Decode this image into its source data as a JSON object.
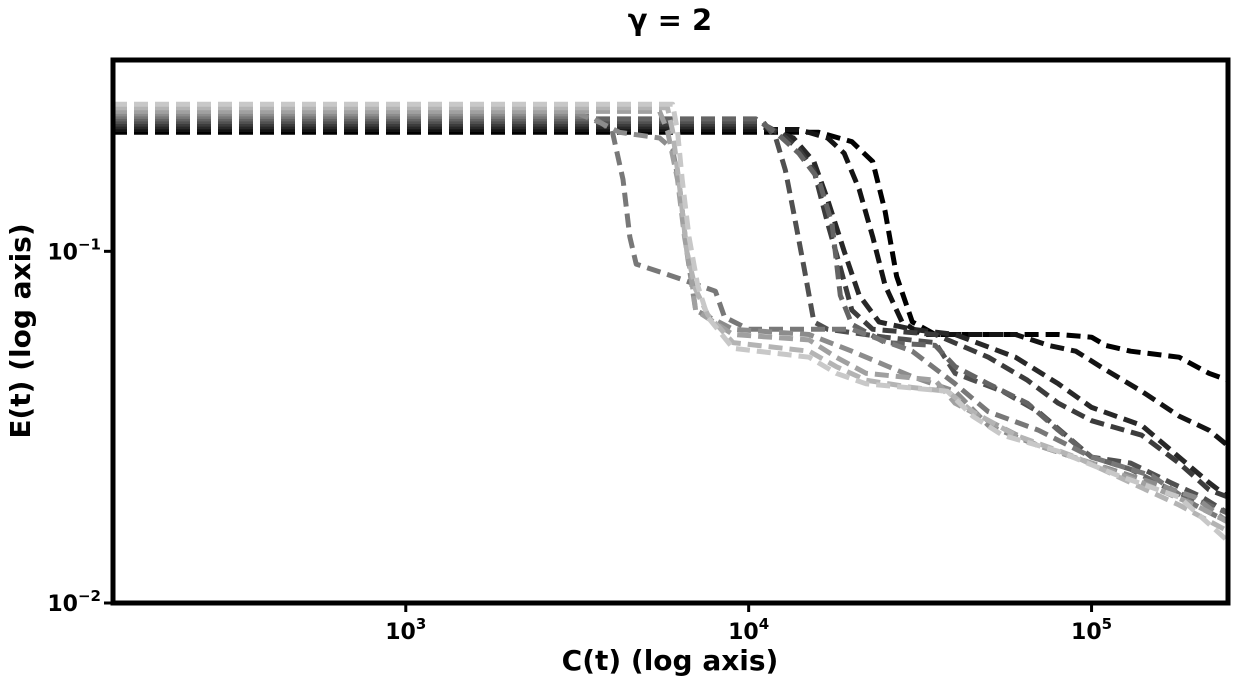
{
  "chart_data": {
    "type": "line",
    "title": "γ = 2",
    "xlabel": "C(t) (log axis)",
    "ylabel": "E(t) (log axis)",
    "xscale": "log",
    "yscale": "log",
    "xlim": [
      140,
      250000
    ],
    "ylim": [
      0.01,
      0.35
    ],
    "grid": false,
    "line_style": "dashed",
    "x_ticks": [
      {
        "value": 1000,
        "base": "10",
        "exp": "3"
      },
      {
        "value": 10000,
        "base": "10",
        "exp": "4"
      },
      {
        "value": 100000,
        "base": "10",
        "exp": "5"
      }
    ],
    "y_ticks": [
      {
        "value": 0.1,
        "base": "10",
        "exp": "−1"
      },
      {
        "value": 0.01,
        "base": "10",
        "exp": "−2"
      }
    ],
    "series": [
      {
        "color": "#000000",
        "points": [
          [
            140,
            0.218
          ],
          [
            16000,
            0.218
          ],
          [
            20000,
            0.205
          ],
          [
            23000,
            0.18
          ],
          [
            25000,
            0.13
          ],
          [
            27000,
            0.085
          ],
          [
            30000,
            0.063
          ],
          [
            35000,
            0.058
          ],
          [
            50000,
            0.058
          ],
          [
            80000,
            0.058
          ],
          [
            100000,
            0.057
          ],
          [
            110000,
            0.054
          ],
          [
            130000,
            0.052
          ],
          [
            180000,
            0.05
          ],
          [
            220000,
            0.045
          ],
          [
            250000,
            0.043
          ]
        ]
      },
      {
        "color": "#141414",
        "points": [
          [
            140,
            0.222
          ],
          [
            14000,
            0.222
          ],
          [
            17000,
            0.21
          ],
          [
            19000,
            0.19
          ],
          [
            21000,
            0.15
          ],
          [
            23000,
            0.11
          ],
          [
            25000,
            0.08
          ],
          [
            28000,
            0.063
          ],
          [
            32000,
            0.058
          ],
          [
            60000,
            0.058
          ],
          [
            75000,
            0.054
          ],
          [
            90000,
            0.052
          ],
          [
            110000,
            0.046
          ],
          [
            140000,
            0.04
          ],
          [
            180000,
            0.034
          ],
          [
            220000,
            0.031
          ],
          [
            250000,
            0.028
          ]
        ]
      },
      {
        "color": "#282828",
        "points": [
          [
            140,
            0.226
          ],
          [
            11000,
            0.226
          ],
          [
            13500,
            0.21
          ],
          [
            15500,
            0.18
          ],
          [
            17000,
            0.14
          ],
          [
            19000,
            0.1
          ],
          [
            21000,
            0.075
          ],
          [
            24000,
            0.063
          ],
          [
            30000,
            0.06
          ],
          [
            40000,
            0.058
          ],
          [
            60000,
            0.05
          ],
          [
            80000,
            0.042
          ],
          [
            100000,
            0.036
          ],
          [
            140000,
            0.032
          ],
          [
            180000,
            0.026
          ],
          [
            220000,
            0.022
          ],
          [
            250000,
            0.02
          ]
        ]
      },
      {
        "color": "#3c3c3c",
        "points": [
          [
            140,
            0.23
          ],
          [
            11000,
            0.23
          ],
          [
            12500,
            0.215
          ],
          [
            14000,
            0.195
          ],
          [
            15500,
            0.17
          ],
          [
            17000,
            0.12
          ],
          [
            18500,
            0.09
          ],
          [
            20000,
            0.068
          ],
          [
            23000,
            0.06
          ],
          [
            35000,
            0.058
          ],
          [
            50000,
            0.05
          ],
          [
            65000,
            0.043
          ],
          [
            80000,
            0.037
          ],
          [
            100000,
            0.033
          ],
          [
            140000,
            0.03
          ],
          [
            180000,
            0.025
          ],
          [
            220000,
            0.021
          ],
          [
            250000,
            0.02
          ]
        ]
      },
      {
        "color": "#505050",
        "points": [
          [
            140,
            0.234
          ],
          [
            11000,
            0.234
          ],
          [
            12000,
            0.21
          ],
          [
            12800,
            0.17
          ],
          [
            13500,
            0.13
          ],
          [
            14500,
            0.09
          ],
          [
            15500,
            0.063
          ],
          [
            17000,
            0.06
          ],
          [
            25000,
            0.057
          ],
          [
            35000,
            0.055
          ],
          [
            40000,
            0.045
          ],
          [
            55000,
            0.04
          ],
          [
            70000,
            0.035
          ],
          [
            100000,
            0.026
          ],
          [
            130000,
            0.025
          ],
          [
            170000,
            0.022
          ],
          [
            210000,
            0.02
          ],
          [
            250000,
            0.018
          ]
        ]
      },
      {
        "color": "#646464",
        "points": [
          [
            140,
            0.238
          ],
          [
            10500,
            0.238
          ],
          [
            12000,
            0.218
          ],
          [
            14000,
            0.19
          ],
          [
            16000,
            0.16
          ],
          [
            17500,
            0.12
          ],
          [
            18500,
            0.075
          ],
          [
            20000,
            0.062
          ],
          [
            25000,
            0.055
          ],
          [
            35000,
            0.054
          ],
          [
            40000,
            0.047
          ],
          [
            50000,
            0.042
          ],
          [
            65000,
            0.037
          ],
          [
            80000,
            0.031
          ],
          [
            100000,
            0.026
          ],
          [
            130000,
            0.024
          ],
          [
            170000,
            0.021
          ],
          [
            220000,
            0.019
          ],
          [
            250000,
            0.018
          ]
        ]
      },
      {
        "color": "#787878",
        "points": [
          [
            140,
            0.242
          ],
          [
            3500,
            0.242
          ],
          [
            4000,
            0.22
          ],
          [
            4300,
            0.16
          ],
          [
            4500,
            0.11
          ],
          [
            4700,
            0.092
          ],
          [
            6000,
            0.085
          ],
          [
            8000,
            0.077
          ],
          [
            8500,
            0.065
          ],
          [
            10000,
            0.06
          ],
          [
            20000,
            0.06
          ],
          [
            30000,
            0.052
          ],
          [
            40000,
            0.042
          ],
          [
            50000,
            0.035
          ],
          [
            70000,
            0.031
          ],
          [
            100000,
            0.026
          ],
          [
            150000,
            0.023
          ],
          [
            200000,
            0.019
          ],
          [
            250000,
            0.017
          ]
        ]
      },
      {
        "color": "#8c8c8c",
        "points": [
          [
            140,
            0.246
          ],
          [
            3200,
            0.246
          ],
          [
            3700,
            0.232
          ],
          [
            4200,
            0.218
          ],
          [
            5500,
            0.21
          ],
          [
            6000,
            0.195
          ],
          [
            6300,
            0.15
          ],
          [
            6600,
            0.1
          ],
          [
            7000,
            0.068
          ],
          [
            9000,
            0.06
          ],
          [
            15000,
            0.058
          ],
          [
            20000,
            0.052
          ],
          [
            30000,
            0.044
          ],
          [
            40000,
            0.04
          ],
          [
            50000,
            0.032
          ],
          [
            70000,
            0.028
          ],
          [
            100000,
            0.025
          ],
          [
            150000,
            0.022
          ],
          [
            200000,
            0.02
          ],
          [
            250000,
            0.017
          ]
        ]
      },
      {
        "color": "#a0a0a0",
        "points": [
          [
            140,
            0.25
          ],
          [
            5500,
            0.25
          ],
          [
            5800,
            0.22
          ],
          [
            6200,
            0.16
          ],
          [
            6500,
            0.11
          ],
          [
            6800,
            0.085
          ],
          [
            7000,
            0.068
          ],
          [
            9000,
            0.058
          ],
          [
            15000,
            0.056
          ],
          [
            18000,
            0.05
          ],
          [
            22000,
            0.045
          ],
          [
            35000,
            0.043
          ],
          [
            40000,
            0.037
          ],
          [
            50000,
            0.033
          ],
          [
            70000,
            0.028
          ],
          [
            100000,
            0.025
          ],
          [
            140000,
            0.022
          ],
          [
            200000,
            0.019
          ],
          [
            250000,
            0.017
          ]
        ]
      },
      {
        "color": "#b4b4b4",
        "points": [
          [
            140,
            0.256
          ],
          [
            5800,
            0.256
          ],
          [
            6000,
            0.22
          ],
          [
            6300,
            0.15
          ],
          [
            6600,
            0.1
          ],
          [
            7000,
            0.078
          ],
          [
            7600,
            0.066
          ],
          [
            9000,
            0.055
          ],
          [
            15000,
            0.052
          ],
          [
            18000,
            0.047
          ],
          [
            22000,
            0.043
          ],
          [
            30000,
            0.041
          ],
          [
            38000,
            0.04
          ],
          [
            45000,
            0.035
          ],
          [
            60000,
            0.03
          ],
          [
            90000,
            0.026
          ],
          [
            130000,
            0.022
          ],
          [
            180000,
            0.019
          ],
          [
            250000,
            0.016
          ]
        ]
      },
      {
        "color": "#c8c8c8",
        "points": [
          [
            140,
            0.262
          ],
          [
            6000,
            0.262
          ],
          [
            6200,
            0.22
          ],
          [
            6400,
            0.16
          ],
          [
            6700,
            0.11
          ],
          [
            7100,
            0.08
          ],
          [
            7600,
            0.065
          ],
          [
            9000,
            0.053
          ],
          [
            15000,
            0.05
          ],
          [
            18000,
            0.045
          ],
          [
            22000,
            0.042
          ],
          [
            38000,
            0.04
          ],
          [
            45000,
            0.034
          ],
          [
            55000,
            0.03
          ],
          [
            80000,
            0.027
          ],
          [
            120000,
            0.023
          ],
          [
            180000,
            0.02
          ],
          [
            250000,
            0.015
          ]
        ]
      }
    ]
  }
}
